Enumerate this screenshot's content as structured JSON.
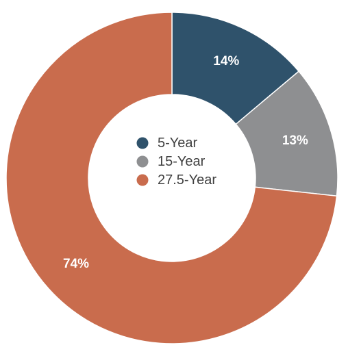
{
  "chart_data": {
    "type": "pie",
    "donut": true,
    "categories": [
      "5-Year",
      "15-Year",
      "27.5-Year"
    ],
    "values": [
      14,
      13,
      74
    ],
    "data_labels": [
      "14%",
      "13%",
      "74%"
    ],
    "colors": [
      "#2f526b",
      "#8e8f91",
      "#c96c4d"
    ],
    "legend_position": "center",
    "start_angle": "top, clockwise",
    "title": ""
  }
}
